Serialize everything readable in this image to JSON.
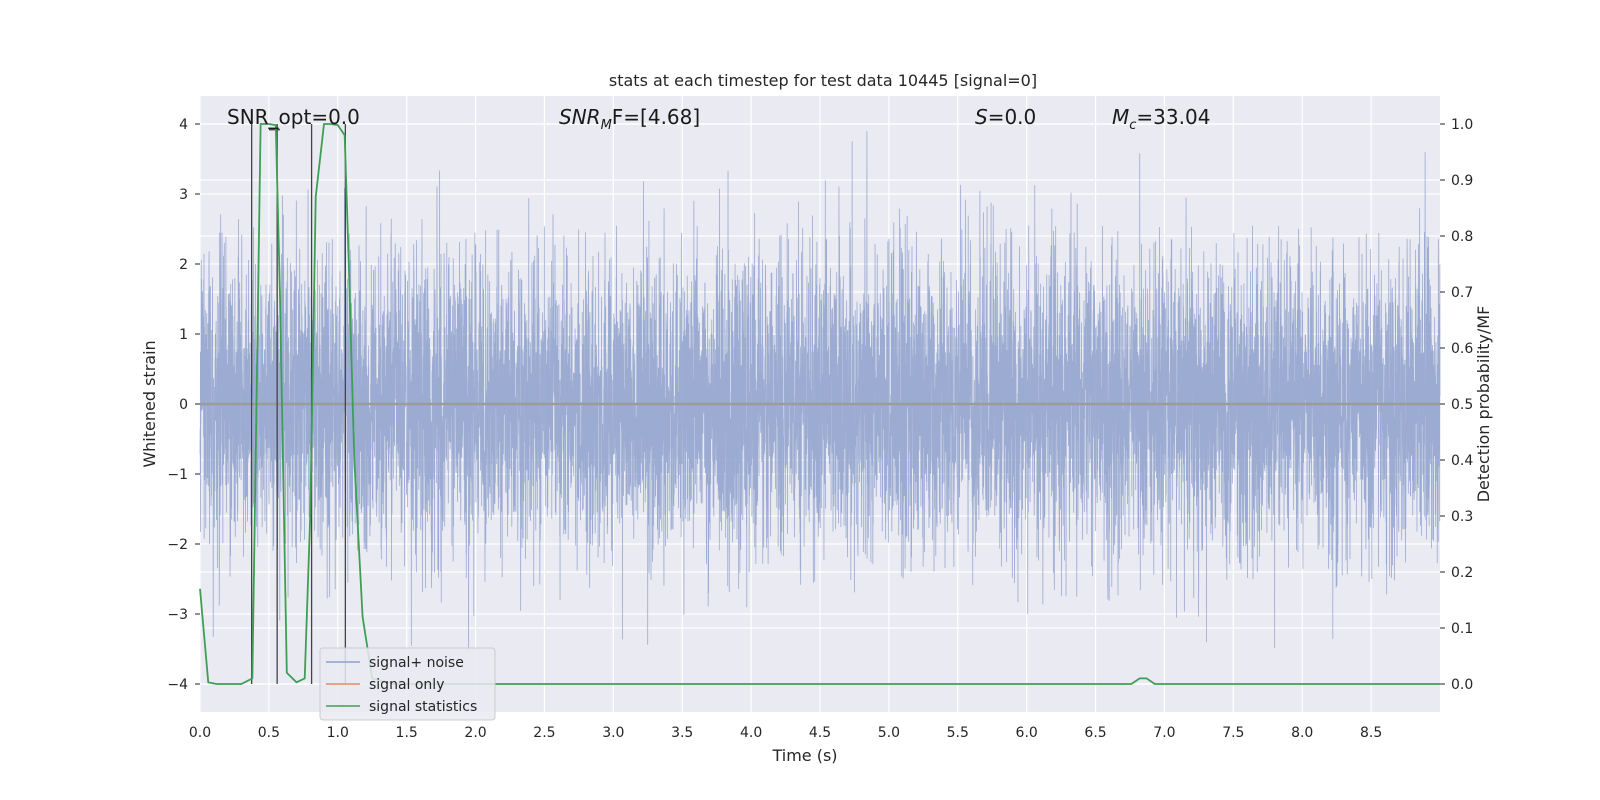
{
  "chart_data": {
    "type": "line",
    "title": "stats at each timestep for test data 10445 [signal=0]",
    "xlabel": "Time (s)",
    "ylabel": "Whitened strain",
    "y2label": "Detection probability/MF",
    "xlim": [
      0.0,
      9.0
    ],
    "ylim": [
      -4.4,
      4.4
    ],
    "y2lim": [
      -0.05,
      1.05
    ],
    "xticks": [
      "0.0",
      "0.5",
      "1.0",
      "1.5",
      "2.0",
      "2.5",
      "3.0",
      "3.5",
      "4.0",
      "4.5",
      "5.0",
      "5.5",
      "6.0",
      "6.5",
      "7.0",
      "7.5",
      "8.0",
      "8.5"
    ],
    "yticks": [
      "4",
      "3",
      "2",
      "1",
      "0",
      "−1",
      "−2",
      "−3",
      "−4"
    ],
    "y2ticks": [
      "1.0",
      "0.9",
      "0.8",
      "0.7",
      "0.6",
      "0.5",
      "0.4",
      "0.3",
      "0.2",
      "0.1",
      "0.0"
    ],
    "grid": true,
    "legend_position": "lower-left",
    "annotations": {
      "snr_opt": "SNR_opt=0.0",
      "snr_mf_prefix": "SNR",
      "snr_mf_sub": "M",
      "snr_mf_rest": "F=[4.68]",
      "s_prefix": "S",
      "s_rest": "=0.0",
      "mc_prefix": "M",
      "mc_sub": "c",
      "mc_rest": "=33.04"
    },
    "series": [
      {
        "name": "signal+ noise",
        "color": "#8da0cb",
        "description_values": {
          "sample_rate_hz": 1024,
          "std": 1.0
        }
      },
      {
        "name": "signal only",
        "color": "#e78a61",
        "values_constant": 0.0
      },
      {
        "name": "signal statistics",
        "color": "#3f9e55",
        "x": [
          0.0,
          0.06,
          0.12,
          0.2,
          0.3,
          0.38,
          0.41,
          0.44,
          0.5,
          0.55,
          0.58,
          0.63,
          0.7,
          0.76,
          0.8,
          0.84,
          0.9,
          0.95,
          1.0,
          1.05,
          1.08,
          1.12,
          1.18,
          1.25,
          1.4,
          2.0,
          3.0,
          4.0,
          5.0,
          6.0,
          6.7,
          6.76,
          6.82,
          6.87,
          6.93,
          7.0,
          8.0,
          9.0
        ],
        "values": [
          0.17,
          0.003,
          0.0,
          0.0,
          0.0,
          0.01,
          0.5,
          1.0,
          1.0,
          0.998,
          0.7,
          0.02,
          0.003,
          0.01,
          0.3,
          0.87,
          1.0,
          1.0,
          0.998,
          0.98,
          0.75,
          0.4,
          0.12,
          0.01,
          0.0,
          0.0,
          0.0,
          0.0,
          0.0,
          0.0,
          0.0,
          0.0,
          0.01,
          0.01,
          0.0,
          0.0,
          0.0,
          0.0
        ]
      }
    ],
    "vlines_x": [
      0.375,
      0.56,
      0.81,
      1.055
    ],
    "hmarker": {
      "x": [
        0.5,
        0.58
      ],
      "y": 0.99
    }
  }
}
